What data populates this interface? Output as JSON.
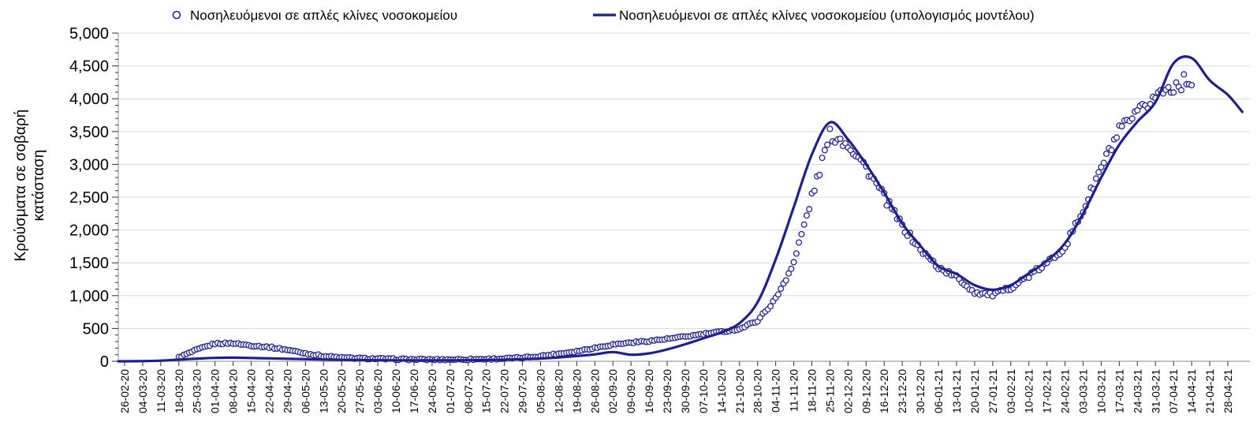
{
  "chart_data": {
    "type": "line",
    "title": "",
    "ylabel": "Κρούσματα σε σοβαρή κατάσταση",
    "ylabel_lines": [
      "Κρούσματα σε σοβαρή",
      "κατάσταση"
    ],
    "ylim": [
      0,
      5000
    ],
    "ytick_step": 500,
    "ytick_minor_step": 100,
    "grid": "horizontal",
    "legend_position": "top",
    "categories": [
      "26-02-20",
      "04-03-20",
      "11-03-20",
      "18-03-20",
      "25-03-20",
      "01-04-20",
      "08-04-20",
      "15-04-20",
      "22-04-20",
      "29-04-20",
      "06-05-20",
      "13-05-20",
      "20-05-20",
      "27-05-20",
      "03-06-20",
      "10-06-20",
      "17-06-20",
      "24-06-20",
      "01-07-20",
      "08-07-20",
      "15-07-20",
      "22-07-20",
      "29-07-20",
      "05-08-20",
      "12-08-20",
      "19-08-20",
      "26-08-20",
      "02-09-20",
      "09-09-20",
      "16-09-20",
      "23-09-20",
      "30-09-20",
      "07-10-20",
      "14-10-20",
      "21-10-20",
      "28-10-20",
      "04-11-20",
      "11-11-20",
      "18-11-20",
      "25-11-20",
      "02-12-20",
      "09-12-20",
      "16-12-20",
      "23-12-20",
      "30-12-20",
      "06-01-21",
      "13-01-21",
      "20-01-21",
      "27-01-21",
      "03-02-21",
      "10-02-21",
      "17-02-21",
      "24-02-21",
      "03-03-21",
      "10-03-21",
      "17-03-21",
      "24-03-21",
      "31-03-21",
      "07-04-21",
      "14-04-21",
      "21-04-21",
      "28-04-21"
    ],
    "series": [
      {
        "name": "Νοσηλευόμενοι σε απλές κλίνες νοσοκομείου",
        "type": "scatter",
        "marker": "open-circle",
        "values": [
          null,
          null,
          null,
          60,
          175,
          270,
          275,
          240,
          215,
          175,
          120,
          80,
          55,
          45,
          38,
          32,
          28,
          26,
          27,
          30,
          34,
          42,
          55,
          80,
          115,
          155,
          205,
          255,
          285,
          310,
          340,
          375,
          415,
          450,
          490,
          620,
          950,
          1500,
          2500,
          3450,
          3320,
          2950,
          2500,
          2060,
          1700,
          1430,
          1280,
          1050,
          1010,
          1120,
          1300,
          1490,
          1750,
          2300,
          2950,
          3500,
          3750,
          4050,
          4200,
          4300,
          null,
          null
        ]
      },
      {
        "name": "Νοσηλευόμενοι σε απλές κλίνες νοσοκομείου (υπολογισμός μοντέλου)",
        "type": "line",
        "values": [
          0,
          3,
          10,
          25,
          40,
          52,
          55,
          50,
          44,
          38,
          32,
          27,
          22,
          19,
          16,
          14,
          13,
          13,
          14,
          16,
          19,
          24,
          32,
          42,
          58,
          80,
          105,
          140,
          100,
          120,
          180,
          260,
          350,
          440,
          580,
          900,
          1550,
          2350,
          3150,
          3640,
          3380,
          3000,
          2570,
          2100,
          1760,
          1450,
          1330,
          1160,
          1090,
          1160,
          1340,
          1530,
          1800,
          2250,
          2800,
          3300,
          3650,
          3950,
          4540,
          4620,
          4280,
          4060
        ],
        "tail_weeks_past_end": 0.8,
        "tail_value": 3800
      }
    ],
    "colors": {
      "scatter": "#26268c",
      "line": "#1f1f8f",
      "grid": "#d9d9d9",
      "axis": "#a0a0a0",
      "tick": "#333333",
      "text": "#000000",
      "background": "#ffffff"
    }
  }
}
